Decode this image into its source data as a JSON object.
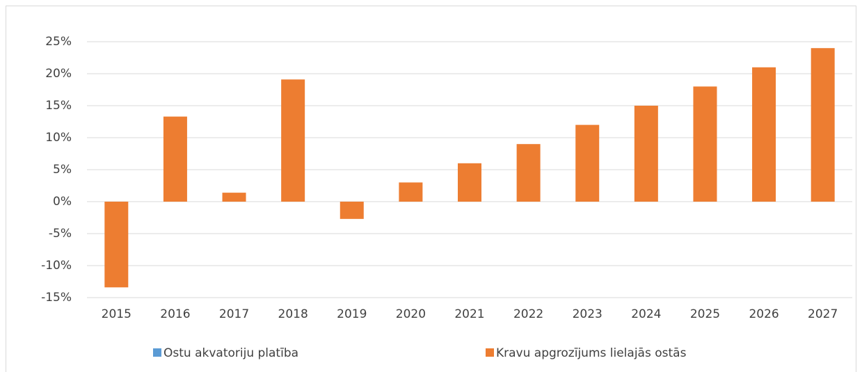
{
  "chart_data": {
    "type": "bar",
    "categories": [
      "2015",
      "2016",
      "2017",
      "2018",
      "2019",
      "2020",
      "2021",
      "2022",
      "2023",
      "2024",
      "2025",
      "2026",
      "2027"
    ],
    "series": [
      {
        "name": "Ostu akvatoriju platība",
        "color": "#5b9bd5",
        "values": [
          null,
          null,
          null,
          null,
          null,
          null,
          null,
          null,
          null,
          null,
          null,
          null,
          null
        ]
      },
      {
        "name": "Kravu apgrozījums lielajās ostās",
        "color": "#ed7d31",
        "values": [
          -13.4,
          13.3,
          1.4,
          19.1,
          -2.7,
          3,
          6,
          9,
          12,
          15,
          18,
          21,
          24
        ]
      }
    ],
    "ylim": [
      -15,
      25
    ],
    "yticks": [
      {
        "value": -15,
        "label": "-15%"
      },
      {
        "value": -10,
        "label": "-10%"
      },
      {
        "value": -5,
        "label": "-5%"
      },
      {
        "value": 0,
        "label": "0%"
      },
      {
        "value": 5,
        "label": "5%"
      },
      {
        "value": 10,
        "label": "10%"
      },
      {
        "value": 15,
        "label": "15%"
      },
      {
        "value": 20,
        "label": "20%"
      },
      {
        "value": 25,
        "label": "25%"
      }
    ],
    "grid": true,
    "legend": "bottom"
  }
}
